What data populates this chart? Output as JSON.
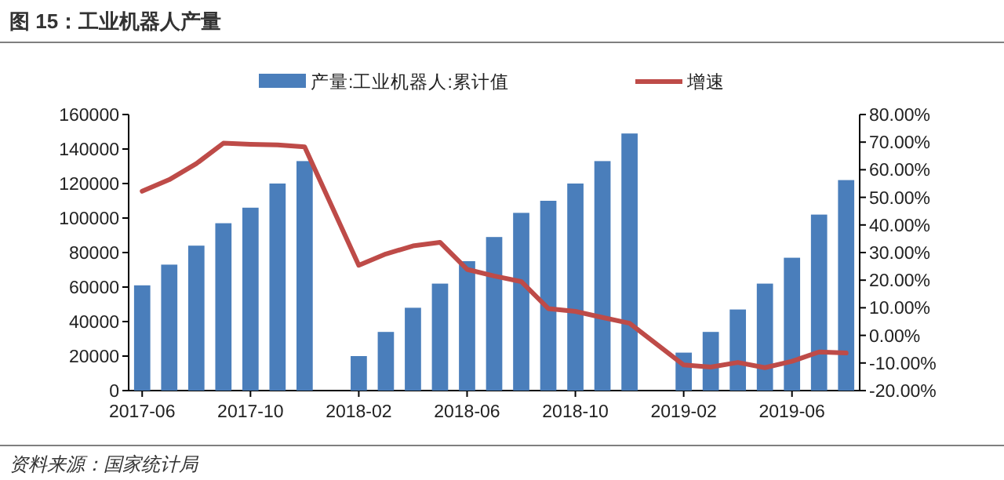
{
  "chart_data": {
    "type": "bar",
    "title": "图 15：工业机器人产量",
    "categories": [
      "2017-06",
      null,
      null,
      null,
      "2017-10",
      null,
      null,
      null,
      "2018-02",
      null,
      null,
      null,
      "2018-06",
      null,
      null,
      null,
      "2018-10",
      null,
      null,
      null,
      "2019-02",
      null,
      null,
      null,
      "2019-06",
      null,
      null
    ],
    "series": [
      {
        "name": "产量:工业机器人:累计值",
        "color": "#4a7ebb",
        "values": [
          61000,
          73000,
          84000,
          97000,
          106000,
          120000,
          133000,
          null,
          20000,
          34000,
          48000,
          62000,
          75000,
          89000,
          103000,
          110000,
          120000,
          133000,
          149000,
          null,
          22000,
          34000,
          47000,
          62000,
          77000,
          102000,
          122000
        ]
      },
      {
        "name": "增速",
        "type": "line",
        "axis": "y2",
        "color": "#be4b48",
        "values": [
          52.2,
          56.4,
          62.2,
          69.6,
          69.2,
          69.0,
          68.3,
          null,
          25.4,
          29.5,
          32.4,
          33.7,
          23.9,
          21.5,
          19.5,
          9.7,
          8.7,
          6.5,
          4.4,
          null,
          -10.7,
          -11.5,
          -9.8,
          -11.7,
          -9.4,
          -6.0,
          -6.4
        ]
      }
    ],
    "ylim": [
      0,
      160000
    ],
    "yticks": [
      0,
      20000,
      40000,
      60000,
      80000,
      100000,
      120000,
      140000,
      160000
    ],
    "y2lim": [
      -20,
      80
    ],
    "y2ticks": [
      {
        "value": -20,
        "label": "-20.00%"
      },
      {
        "value": -10,
        "label": "-10.00%"
      },
      {
        "value": 0,
        "label": "0.00%"
      },
      {
        "value": 10,
        "label": "10.00%"
      },
      {
        "value": 20,
        "label": "20.00%"
      },
      {
        "value": 30,
        "label": "30.00%"
      },
      {
        "value": 40,
        "label": "40.00%"
      },
      {
        "value": 50,
        "label": "50.00%"
      },
      {
        "value": 60,
        "label": "60.00%"
      },
      {
        "value": 70,
        "label": "70.00%"
      },
      {
        "value": 80,
        "label": "80.00%"
      }
    ],
    "legend": "top",
    "annotations": [
      "资料来源：国家统计局"
    ]
  }
}
